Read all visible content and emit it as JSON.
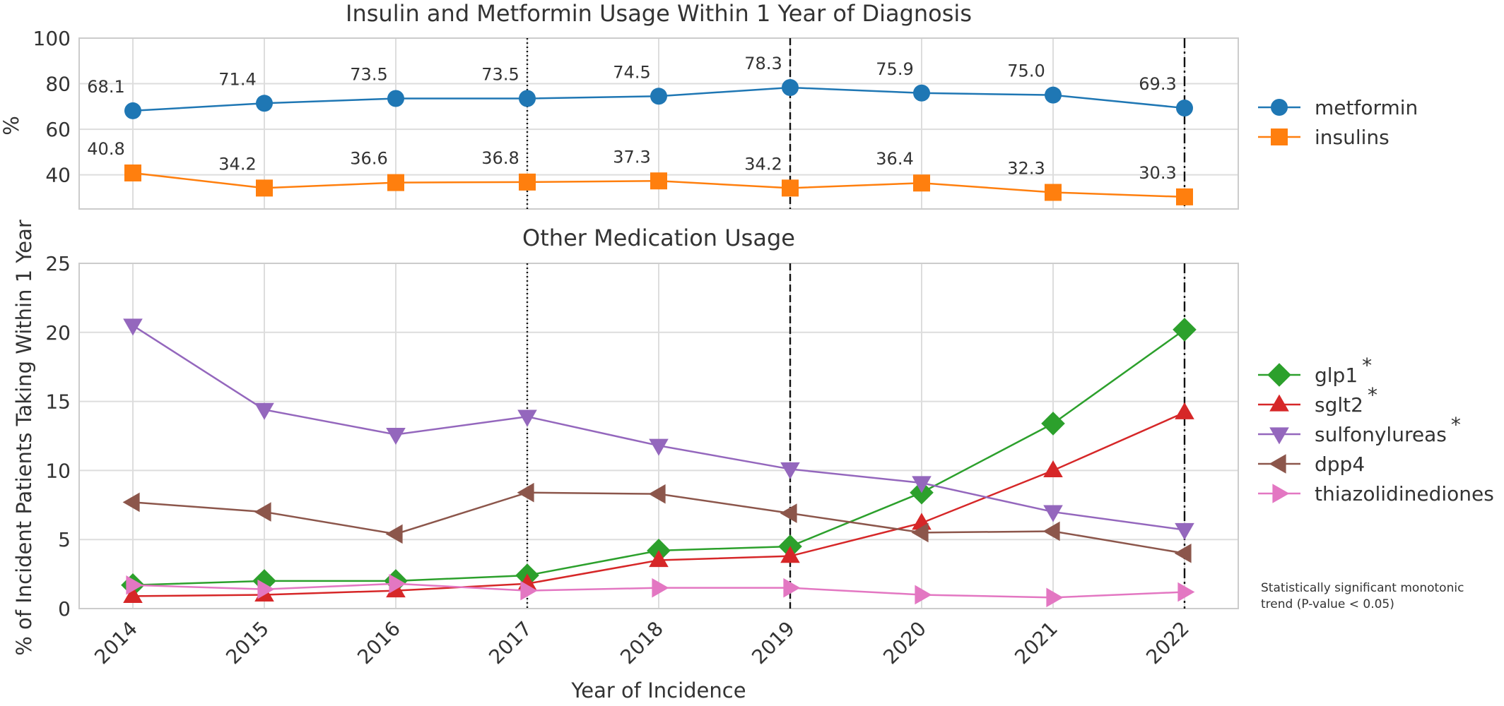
{
  "chart_data": [
    {
      "type": "line",
      "title": "Insulin and Metformin Usage Within 1 Year of Diagnosis",
      "ylabel": "%",
      "x": [
        2014,
        2015,
        2016,
        2017,
        2018,
        2019,
        2020,
        2021,
        2022
      ],
      "ylim": [
        25,
        100
      ],
      "yticks": [
        40,
        60,
        80,
        100
      ],
      "grid": true,
      "legend_position": "right",
      "vlines": [
        {
          "x": 2017,
          "style": "dotted"
        },
        {
          "x": 2019,
          "style": "dashed"
        },
        {
          "x": 2022,
          "style": "dashdot"
        }
      ],
      "series": [
        {
          "name": "metformin",
          "color": "#1f77b4",
          "marker": "circle",
          "values": [
            68.1,
            71.4,
            73.5,
            73.5,
            74.5,
            78.3,
            75.9,
            75.0,
            69.3
          ],
          "labels": [
            "68.1",
            "71.4",
            "73.5",
            "73.5",
            "74.5",
            "78.3",
            "75.9",
            "75.0",
            "69.3"
          ]
        },
        {
          "name": "insulins",
          "color": "#ff7f0e",
          "marker": "square",
          "values": [
            40.8,
            34.2,
            36.6,
            36.8,
            37.3,
            34.2,
            36.4,
            32.3,
            30.3
          ],
          "labels": [
            "40.8",
            "34.2",
            "36.6",
            "36.8",
            "37.3",
            "34.2",
            "36.4",
            "32.3",
            "30.3"
          ]
        }
      ]
    },
    {
      "type": "line",
      "title": "Other Medication Usage",
      "xlabel": "Year of Incidence",
      "ylabel": "% of Incident Patients Taking Within 1 Year",
      "x": [
        2014,
        2015,
        2016,
        2017,
        2018,
        2019,
        2020,
        2021,
        2022
      ],
      "ylim": [
        0,
        25
      ],
      "yticks": [
        0,
        5,
        10,
        15,
        20,
        25
      ],
      "grid": true,
      "legend_position": "right",
      "vlines": [
        {
          "x": 2017,
          "style": "dotted"
        },
        {
          "x": 2019,
          "style": "dashed"
        },
        {
          "x": 2022,
          "style": "dashdot"
        }
      ],
      "series": [
        {
          "name": "glp1",
          "significant": true,
          "color": "#2ca02c",
          "marker": "diamond",
          "values": [
            1.7,
            2.0,
            2.0,
            2.4,
            4.2,
            4.5,
            8.4,
            13.4,
            20.2
          ]
        },
        {
          "name": "sglt2",
          "significant": true,
          "color": "#d62728",
          "marker": "triangle-up",
          "values": [
            0.9,
            1.0,
            1.3,
            1.8,
            3.5,
            3.8,
            6.2,
            10.0,
            14.2
          ]
        },
        {
          "name": "sulfonylureas",
          "significant": true,
          "color": "#9467bd",
          "marker": "triangle-down",
          "values": [
            20.5,
            14.4,
            12.6,
            13.9,
            11.8,
            10.1,
            9.1,
            7.0,
            5.7
          ]
        },
        {
          "name": "dpp4",
          "significant": false,
          "color": "#8c564b",
          "marker": "triangle-left",
          "values": [
            7.7,
            7.0,
            5.4,
            8.4,
            8.3,
            6.9,
            5.5,
            5.6,
            4.0
          ]
        },
        {
          "name": "thiazolidinediones",
          "significant": false,
          "color": "#e377c2",
          "marker": "triangle-right",
          "values": [
            1.7,
            1.4,
            1.8,
            1.3,
            1.5,
            1.5,
            1.0,
            0.8,
            1.2
          ]
        }
      ],
      "significance_marker": "*",
      "footnote_line1": "Statistically significant monotonic",
      "footnote_line2": "trend (P-value < 0.05)"
    }
  ]
}
